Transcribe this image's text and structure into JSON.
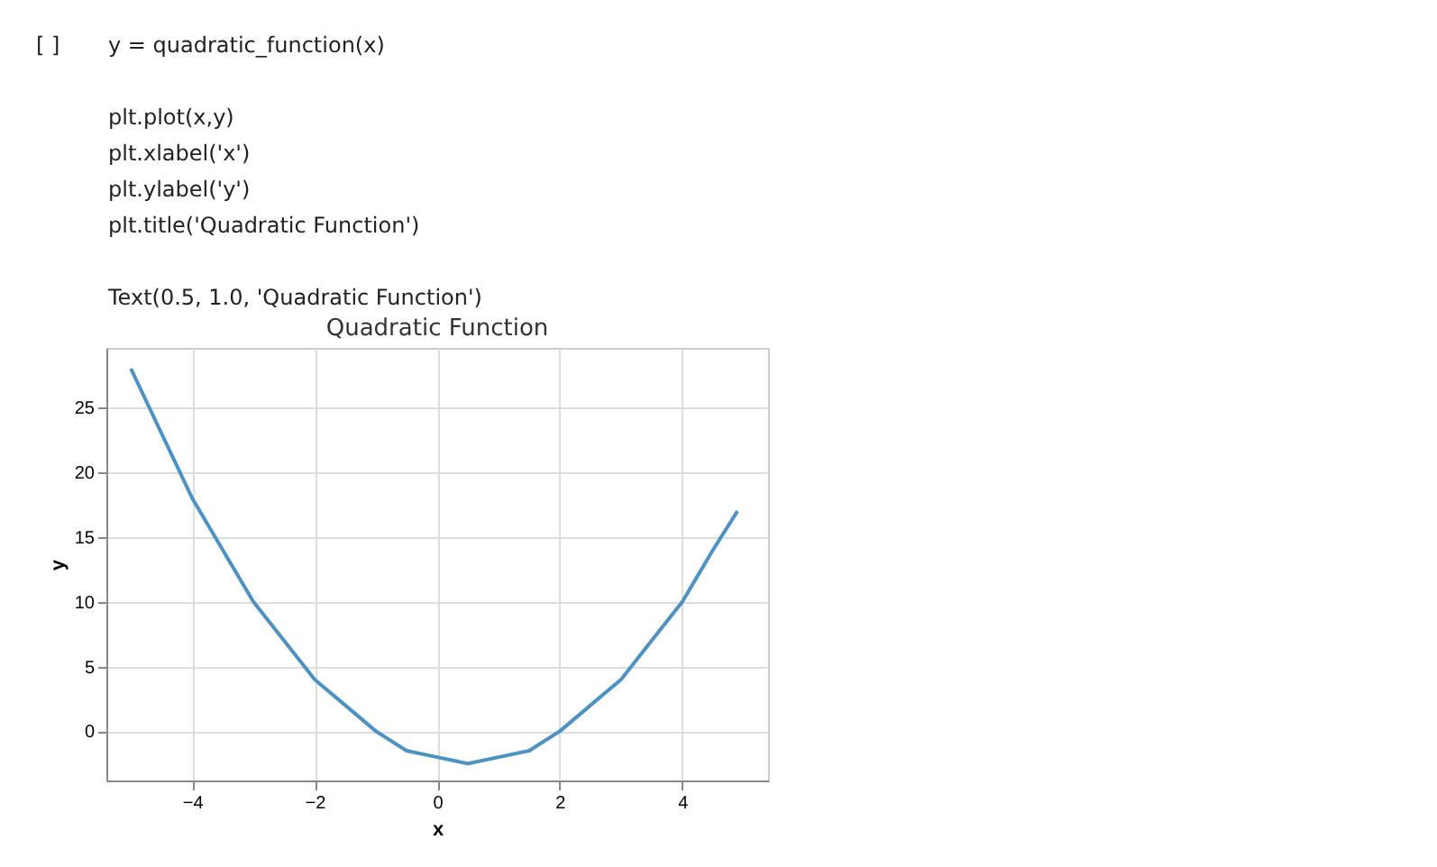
{
  "chart_data": {
    "type": "line",
    "title": "Quadratic Function",
    "xlabel": "x",
    "ylabel": "y",
    "annotations": [
      "[ ]",
      "y = quadratic_function(x)",
      "plt.plot(x,y)",
      "plt.xlabel('x')",
      "plt.ylabel('y')",
      "plt.title('Quadratic Function')",
      "Text(0.5, 1.0, 'Quadratic Function')"
    ],
    "x": [
      -5,
      -4.5,
      -4,
      -3.5,
      -3,
      -2.5,
      -2,
      -1.5,
      -1,
      -0.5,
      0,
      0.5,
      1,
      1.5,
      2,
      2.5,
      3,
      3.5,
      4,
      4.5,
      4.9
    ],
    "series": [
      {
        "color": "#4c92c3",
        "values": [
          28,
          23,
          18,
          14,
          10,
          7,
          4,
          2,
          0,
          -1.5,
          -2,
          -2.5,
          -2,
          -1.5,
          0,
          2,
          4,
          7,
          10,
          14,
          17
        ]
      }
    ],
    "xlim": [
      -5.4,
      5.4
    ],
    "ylim": [
      -3.8,
      29.6
    ],
    "xticks": [
      -4,
      -2,
      0,
      2,
      4
    ],
    "yticks": [
      0,
      5,
      10,
      15,
      20,
      25
    ],
    "grid": true,
    "marker": "none",
    "line_style": "solid"
  }
}
